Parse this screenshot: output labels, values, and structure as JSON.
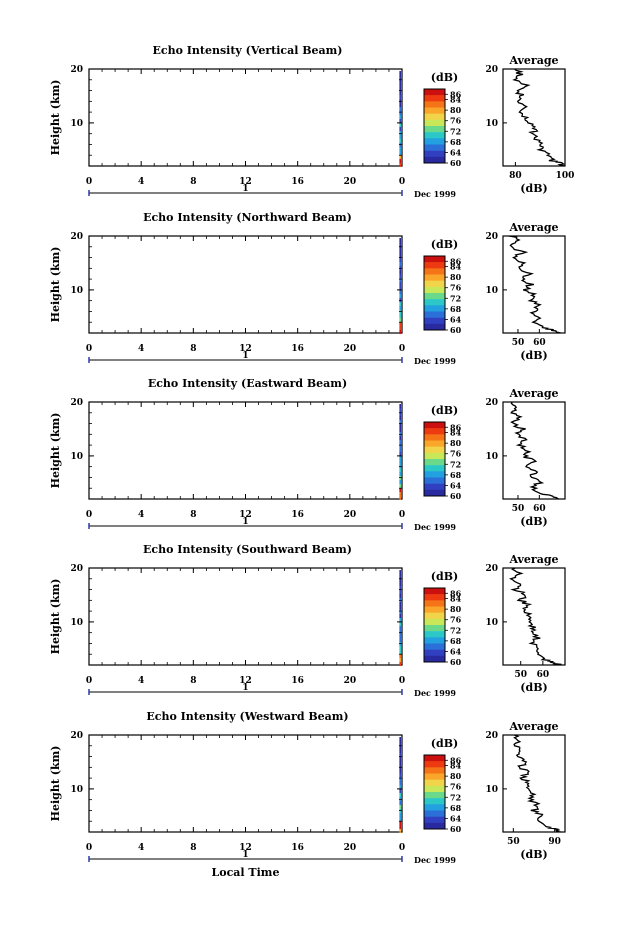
{
  "chart_data": [
    {
      "type": "heatmap",
      "title": "Echo Intensity (Vertical Beam)",
      "ylabel": "Height (km)",
      "y_ticks": [
        "20",
        "10"
      ],
      "ylim": [
        2,
        20
      ],
      "x_ticks": [
        "0",
        "4",
        "8",
        "12",
        "16",
        "20",
        "0"
      ],
      "xlim": [
        0,
        24
      ],
      "day_label": "1",
      "date_label": "Dec 1999",
      "colorbar": {
        "label": "(dB)",
        "ticks": [
          "86",
          "84",
          "80",
          "76",
          "72",
          "68",
          "64",
          "60"
        ],
        "range": [
          60,
          88
        ]
      },
      "data_column_hour": 23.8,
      "average": {
        "title": "Average",
        "xlabel": "(dB)",
        "x_ticks": [
          "80",
          "100"
        ],
        "xlim": [
          75,
          100
        ],
        "y_ticks": [
          "20",
          "10"
        ],
        "profile": [
          [
            20,
            80
          ],
          [
            19,
            82
          ],
          [
            18,
            79
          ],
          [
            17,
            84
          ],
          [
            16,
            80
          ],
          [
            15,
            83
          ],
          [
            14,
            81
          ],
          [
            13,
            85
          ],
          [
            12,
            82
          ],
          [
            11,
            84
          ],
          [
            10,
            86
          ],
          [
            9,
            88
          ],
          [
            8,
            87
          ],
          [
            7,
            89
          ],
          [
            6,
            91
          ],
          [
            5,
            90
          ],
          [
            4,
            93
          ],
          [
            3,
            95
          ],
          [
            2.5,
            98
          ],
          [
            2,
            100
          ]
        ]
      }
    },
    {
      "type": "heatmap",
      "title": "Echo Intensity (Northward Beam)",
      "ylabel": "Height (km)",
      "y_ticks": [
        "20",
        "10"
      ],
      "ylim": [
        2,
        20
      ],
      "x_ticks": [
        "0",
        "4",
        "8",
        "12",
        "16",
        "20",
        "0"
      ],
      "xlim": [
        0,
        24
      ],
      "day_label": "1",
      "date_label": "Dec 1999",
      "colorbar": {
        "label": "(dB)",
        "ticks": [
          "86",
          "84",
          "80",
          "76",
          "72",
          "68",
          "64",
          "60"
        ],
        "range": [
          60,
          88
        ]
      },
      "data_column_hour": 23.8,
      "average": {
        "title": "Average",
        "xlabel": "(dB)",
        "x_ticks": [
          "50",
          "60"
        ],
        "xlim": [
          43,
          72
        ],
        "y_ticks": [
          "20",
          "10"
        ],
        "profile": [
          [
            20,
            47
          ],
          [
            19,
            50
          ],
          [
            18,
            47
          ],
          [
            17,
            52
          ],
          [
            16,
            49
          ],
          [
            15,
            53
          ],
          [
            14,
            50
          ],
          [
            13,
            55
          ],
          [
            12,
            52
          ],
          [
            11,
            56
          ],
          [
            10,
            54
          ],
          [
            9,
            58
          ],
          [
            8,
            56
          ],
          [
            7,
            60
          ],
          [
            6,
            57
          ],
          [
            5,
            59
          ],
          [
            4,
            58
          ],
          [
            3,
            63
          ],
          [
            2.5,
            66
          ],
          [
            2,
            70
          ]
        ]
      }
    },
    {
      "type": "heatmap",
      "title": "Echo Intensity (Eastward Beam)",
      "ylabel": "Height (km)",
      "y_ticks": [
        "20",
        "10"
      ],
      "ylim": [
        2,
        20
      ],
      "x_ticks": [
        "0",
        "4",
        "8",
        "12",
        "16",
        "20",
        "0"
      ],
      "xlim": [
        0,
        24
      ],
      "day_label": "1",
      "date_label": "Dec 1999",
      "colorbar": {
        "label": "(dB)",
        "ticks": [
          "86",
          "84",
          "80",
          "76",
          "72",
          "68",
          "64",
          "60"
        ],
        "range": [
          60,
          88
        ]
      },
      "data_column_hour": 23.8,
      "average": {
        "title": "Average",
        "xlabel": "(dB)",
        "x_ticks": [
          "50",
          "60"
        ],
        "xlim": [
          43,
          72
        ],
        "y_ticks": [
          "20",
          "10"
        ],
        "profile": [
          [
            20,
            46
          ],
          [
            19,
            49
          ],
          [
            18,
            47
          ],
          [
            17,
            51
          ],
          [
            16,
            48
          ],
          [
            15,
            52
          ],
          [
            14,
            49
          ],
          [
            13,
            54
          ],
          [
            12,
            51
          ],
          [
            11,
            55
          ],
          [
            10,
            53
          ],
          [
            9,
            57
          ],
          [
            8,
            55
          ],
          [
            7,
            59
          ],
          [
            6,
            56
          ],
          [
            5,
            60
          ],
          [
            4,
            57
          ],
          [
            3,
            62
          ],
          [
            2.5,
            65
          ],
          [
            2,
            69
          ]
        ]
      }
    },
    {
      "type": "heatmap",
      "title": "Echo Intensity (Southward Beam)",
      "ylabel": "Height (km)",
      "y_ticks": [
        "20",
        "10"
      ],
      "ylim": [
        2,
        20
      ],
      "x_ticks": [
        "0",
        "4",
        "8",
        "12",
        "16",
        "20",
        "0"
      ],
      "xlim": [
        0,
        24
      ],
      "day_label": "1",
      "date_label": "Dec 1999",
      "colorbar": {
        "label": "(dB)",
        "ticks": [
          "86",
          "84",
          "80",
          "76",
          "72",
          "68",
          "64",
          "60"
        ],
        "range": [
          60,
          88
        ]
      },
      "data_column_hour": 23.8,
      "average": {
        "title": "Average",
        "xlabel": "(dB)",
        "x_ticks": [
          "50",
          "60"
        ],
        "xlim": [
          42,
          70
        ],
        "y_ticks": [
          "20",
          "10"
        ],
        "profile": [
          [
            20,
            47
          ],
          [
            19,
            49
          ],
          [
            18,
            46
          ],
          [
            17,
            51
          ],
          [
            16,
            48
          ],
          [
            15,
            52
          ],
          [
            14,
            50
          ],
          [
            13,
            54
          ],
          [
            12,
            51
          ],
          [
            11,
            55
          ],
          [
            10,
            53
          ],
          [
            9,
            56
          ],
          [
            8,
            54
          ],
          [
            7,
            58
          ],
          [
            6,
            55
          ],
          [
            5,
            59
          ],
          [
            4,
            57
          ],
          [
            3,
            61
          ],
          [
            2.5,
            64
          ],
          [
            2,
            68
          ]
        ]
      }
    },
    {
      "type": "heatmap",
      "title": "Echo Intensity (Westward Beam)",
      "ylabel": "Height (km)",
      "y_ticks": [
        "20",
        "10"
      ],
      "ylim": [
        2,
        20
      ],
      "x_ticks": [
        "0",
        "4",
        "8",
        "12",
        "16",
        "20",
        "0"
      ],
      "xlim": [
        0,
        24
      ],
      "day_label": "1",
      "date_label": "Dec 1999",
      "xlabel": "Local Time",
      "colorbar": {
        "label": "(dB)",
        "ticks": [
          "86",
          "84",
          "80",
          "76",
          "72",
          "68",
          "64",
          "60"
        ],
        "range": [
          60,
          88
        ]
      },
      "data_column_hour": 23.8,
      "average": {
        "title": "Average",
        "xlabel": "(dB)",
        "x_ticks": [
          "50",
          "90"
        ],
        "xlim": [
          40,
          100
        ],
        "y_ticks": [
          "20",
          "10"
        ],
        "profile": [
          [
            20,
            52
          ],
          [
            19,
            56
          ],
          [
            18,
            53
          ],
          [
            17,
            58
          ],
          [
            16,
            55
          ],
          [
            15,
            60
          ],
          [
            14,
            57
          ],
          [
            13,
            63
          ],
          [
            12,
            60
          ],
          [
            11,
            66
          ],
          [
            10,
            64
          ],
          [
            9,
            70
          ],
          [
            8,
            67
          ],
          [
            7,
            74
          ],
          [
            6,
            70
          ],
          [
            5,
            78
          ],
          [
            4,
            75
          ],
          [
            3,
            84
          ],
          [
            2.5,
            90
          ],
          [
            2,
            96
          ]
        ]
      }
    }
  ],
  "colors": {
    "colorbar": [
      "#cc1010",
      "#ee3a10",
      "#f57418",
      "#f9a62a",
      "#f2d44a",
      "#c8e85a",
      "#6ad98a",
      "#2cc8c8",
      "#22a0e0",
      "#2a70d8",
      "#3040c0",
      "#2a2aa0"
    ],
    "baseline_marker": "#2a3aa8"
  }
}
